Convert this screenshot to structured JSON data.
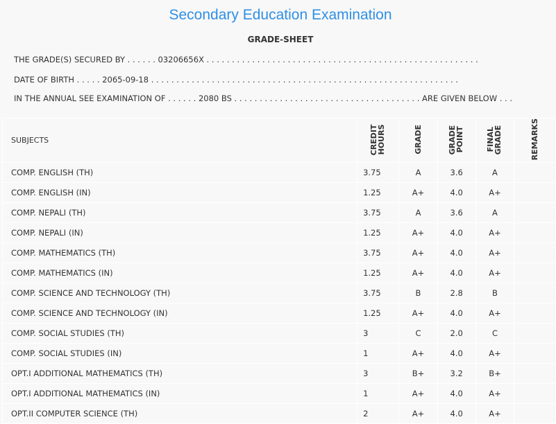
{
  "title": "Secondary Education Examination",
  "subtitle": "GRADE-SHEET",
  "lines": [
    "THE GRADE(S) SECURED BY . . . . . . 03206656X . . . . . . . . . . . . . . . . . . . . . . . . . . . . . . . . . . . . . . . . . . . . . . . . . . . . . .",
    "DATE OF BIRTH . . . . . 2065-09-18 . . . . . . . . . . . . . . . . . . . . . . . . . . . . . . . . . . . . . . . . . . . . . . . . . . . . . . . . . . . . .",
    "IN THE ANNUAL SEE EXAMINATION OF . . . . . . 2080 BS . . . . . . . . . . . . . . . . . . . . . . . . . . . . . . . . . . . . . ARE GIVEN BELOW . . ."
  ],
  "headers": {
    "subjects": "SUBJECTS",
    "credit": "CREDIT HOURS",
    "grade": "GRADE",
    "point": "GRADE POINT",
    "final": "FINAL GRADE",
    "remarks": "REMARKS"
  },
  "rows": [
    [
      "COMP. ENGLISH (TH)",
      "3.75",
      "A",
      "3.6",
      "A"
    ],
    [
      "COMP. ENGLISH (IN)",
      "1.25",
      "A+",
      "4.0",
      "A+"
    ],
    [
      "COMP. NEPALI (TH)",
      "3.75",
      "A",
      "3.6",
      "A"
    ],
    [
      "COMP. NEPALI (IN)",
      "1.25",
      "A+",
      "4.0",
      "A+"
    ],
    [
      "COMP. MATHEMATICS (TH)",
      "3.75",
      "A+",
      "4.0",
      "A+"
    ],
    [
      "COMP. MATHEMATICS (IN)",
      "1.25",
      "A+",
      "4.0",
      "A+"
    ],
    [
      "COMP. SCIENCE AND TECHNOLOGY (TH)",
      "3.75",
      "B",
      "2.8",
      "B"
    ],
    [
      "COMP. SCIENCE AND TECHNOLOGY (IN)",
      "1.25",
      "A+",
      "4.0",
      "A+"
    ],
    [
      "COMP. SOCIAL STUDIES (TH)",
      "3",
      "C",
      "2.0",
      "C"
    ],
    [
      "COMP. SOCIAL STUDIES (IN)",
      "1",
      "A+",
      "4.0",
      "A+"
    ],
    [
      "OPT.I ADDITIONAL MATHEMATICS (TH)",
      "3",
      "B+",
      "3.2",
      "B+"
    ],
    [
      "OPT.I ADDITIONAL MATHEMATICS (IN)",
      "1",
      "A+",
      "4.0",
      "A+"
    ],
    [
      "OPT.II COMPUTER SCIENCE (TH)",
      "2",
      "A+",
      "4.0",
      "A+"
    ]
  ]
}
